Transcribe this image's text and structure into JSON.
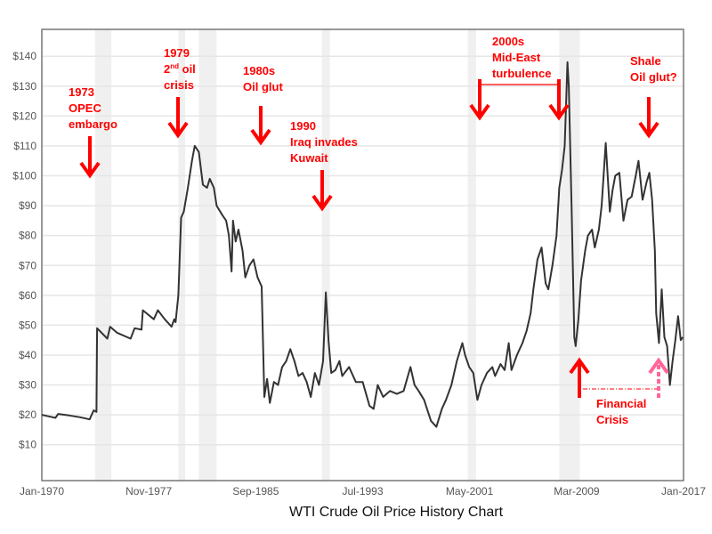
{
  "chart_data": {
    "type": "line",
    "title": "WTI Crude Oil Price History Chart",
    "xlabel": "",
    "ylabel": "",
    "xlim": [
      1970,
      2017
    ],
    "ylim": [
      -2,
      149
    ],
    "grid": true,
    "legend": "none",
    "x_tick_labels": [
      "Jan-1970",
      "Nov-1977",
      "Sep-1985",
      "Jul-1993",
      "May-2001",
      "Mar-2009",
      "Jan-2017"
    ],
    "x_tick_years": [
      1970,
      1977.83,
      1985.67,
      1993.5,
      2001.33,
      2009.17,
      2017
    ],
    "y_ticks": [
      10,
      20,
      30,
      40,
      50,
      60,
      70,
      80,
      90,
      100,
      110,
      120,
      130,
      140
    ],
    "y_tick_labels": [
      "$10",
      "$20",
      "$30",
      "$40",
      "$50",
      "$60",
      "$70",
      "$80",
      "$90",
      "$100",
      "$110",
      "$120",
      "$130",
      "$140"
    ],
    "recessions": [
      [
        1973.9,
        1975.1
      ],
      [
        1980.0,
        1980.5
      ],
      [
        1981.5,
        1982.8
      ],
      [
        1990.5,
        1991.1
      ],
      [
        2001.2,
        2001.8
      ],
      [
        2007.9,
        2009.4
      ]
    ],
    "series": [
      {
        "color": "#333333",
        "x": [
          1970.0,
          1970.5,
          1971.0,
          1971.2,
          1972.0,
          1972.8,
          1973.5,
          1973.8,
          1974.0,
          1974.05,
          1974.8,
          1975.0,
          1975.5,
          1976.5,
          1976.8,
          1977.3,
          1977.4,
          1978.2,
          1978.5,
          1979.0,
          1979.5,
          1979.7,
          1979.8,
          1980.0,
          1980.2,
          1980.4,
          1980.7,
          1981.0,
          1981.2,
          1981.5,
          1981.8,
          1982.1,
          1982.3,
          1982.6,
          1982.8,
          1983.2,
          1983.5,
          1983.7,
          1983.9,
          1984.0,
          1984.2,
          1984.4,
          1984.7,
          1984.9,
          1985.2,
          1985.5,
          1985.8,
          1986.0,
          1986.1,
          1986.3,
          1986.5,
          1986.7,
          1987.0,
          1987.3,
          1987.6,
          1987.9,
          1988.2,
          1988.5,
          1988.8,
          1989.1,
          1989.4,
          1989.7,
          1990.0,
          1990.3,
          1990.6,
          1990.8,
          1991.0,
          1991.2,
          1991.5,
          1991.8,
          1992.0,
          1992.5,
          1993.0,
          1993.5,
          1994.0,
          1994.3,
          1994.6,
          1995.0,
          1995.5,
          1996.0,
          1996.5,
          1997.0,
          1997.3,
          1997.6,
          1998.0,
          1998.5,
          1998.9,
          1999.3,
          1999.6,
          2000.0,
          2000.4,
          2000.8,
          2001.0,
          2001.3,
          2001.6,
          2001.9,
          2002.2,
          2002.6,
          2003.0,
          2003.2,
          2003.6,
          2003.9,
          2004.2,
          2004.4,
          2004.8,
          2005.2,
          2005.5,
          2005.8,
          2006.0,
          2006.3,
          2006.6,
          2006.9,
          2007.1,
          2007.4,
          2007.7,
          2007.9,
          2008.1,
          2008.3,
          2008.5,
          2008.6,
          2008.8,
          2009.0,
          2009.1,
          2009.3,
          2009.5,
          2009.8,
          2010.0,
          2010.3,
          2010.5,
          2010.8,
          2011.0,
          2011.3,
          2011.6,
          2011.8,
          2012.0,
          2012.3,
          2012.6,
          2012.9,
          2013.2,
          2013.5,
          2013.7,
          2014.0,
          2014.3,
          2014.5,
          2014.7,
          2014.9,
          2015.0,
          2015.2,
          2015.4,
          2015.6,
          2015.8,
          2016.0,
          2016.2,
          2016.4,
          2016.6,
          2016.8,
          2016.95
        ],
        "y": [
          20,
          19.5,
          19,
          20.3,
          19.8,
          19.2,
          18.5,
          21.5,
          21,
          49,
          45.5,
          49.5,
          47.5,
          45.5,
          49,
          48.5,
          55,
          52,
          55,
          52,
          49.5,
          52,
          51,
          60,
          86,
          88,
          96,
          105,
          110,
          108,
          97,
          96,
          99,
          96,
          90,
          87,
          85,
          80,
          68,
          85,
          78,
          82,
          75,
          66,
          70,
          72,
          66,
          64,
          63,
          26,
          32,
          24,
          31,
          30,
          36,
          38,
          42,
          38,
          33,
          34,
          31,
          26,
          34,
          30,
          38,
          61,
          45,
          34,
          35,
          38,
          33,
          36,
          31,
          31,
          23,
          22,
          30,
          26,
          28,
          27,
          28,
          36,
          30,
          28,
          25,
          18,
          16,
          22,
          25,
          30,
          38,
          44,
          40,
          36,
          34,
          25,
          30,
          34,
          36,
          33,
          37,
          35,
          44,
          35,
          40,
          44,
          48,
          54,
          62,
          72,
          76,
          64,
          62,
          70,
          80,
          96,
          102,
          110,
          138,
          130,
          90,
          46,
          43,
          52,
          65,
          75,
          80,
          82,
          76,
          82,
          90,
          111,
          88,
          95,
          100,
          101,
          85,
          92,
          93,
          100,
          105,
          92,
          98,
          101,
          92,
          75,
          54,
          44,
          62,
          46,
          43,
          30,
          38,
          45,
          53,
          45,
          46
        ]
      }
    ],
    "annotations": {
      "opec": [
        "1973",
        "OPEC",
        "embargo"
      ],
      "crisis79": {
        "line1": "1979",
        "line2_pre": "2",
        "line2_sup": "nd",
        "line2_post": " oil",
        "line3": "crisis"
      },
      "glut80s": [
        "1980s",
        "Oil glut"
      ],
      "iraq": [
        "1990",
        "Iraq invades",
        "Kuwait"
      ],
      "mideast": [
        "2000s",
        "Mid-East",
        "turbulence"
      ],
      "shale": [
        "Shale",
        "Oil glut?"
      ],
      "financial": [
        "Financial",
        "Crisis"
      ]
    },
    "colors": {
      "annotation": "#ff0000",
      "annotation_secondary": "#ff6699",
      "recession": "#f0f0f0",
      "grid": "#e6e6e6",
      "line": "#333333"
    }
  }
}
